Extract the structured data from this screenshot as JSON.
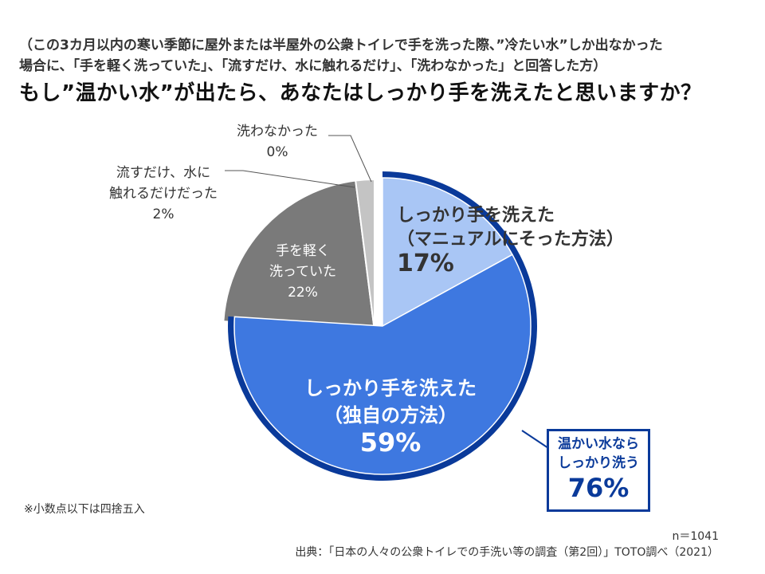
{
  "header": {
    "subtitle_line1": "（この3カ月以内の寒い季節に屋外または半屋外の公衆トイレで手を洗った際、”冷たい水”しか出なかった",
    "subtitle_line2": "場合に、「手を軽く洗っていた」、「流すだけ、水に触れるだけ」、「洗わなかった」と回答した方）",
    "title": "もし”温かい水”が出たら、あなたはしっかり手を洗えたと思いますか？"
  },
  "chart_data": {
    "type": "pie",
    "slices": [
      {
        "label_lines": [
          "しっかり手を洗えた",
          "（マニュアルにそった方法）"
        ],
        "value": 17,
        "value_label": "17%",
        "color": "#a9c6f5"
      },
      {
        "label_lines": [
          "しっかり手を洗えた",
          "（独自の方法）"
        ],
        "value": 59,
        "value_label": "59%",
        "color": "#3e78e0"
      },
      {
        "label_lines": [
          "手を軽く",
          "洗っていた"
        ],
        "value": 22,
        "value_label": "22%",
        "color": "#7a7a7a"
      },
      {
        "label_lines": [
          "流すだけ、水に",
          "触れるだけだった"
        ],
        "value": 2,
        "value_label": "2%",
        "color": "#c4c4c4"
      },
      {
        "label_lines": [
          "洗わなかった"
        ],
        "value": 0,
        "value_label": "0%",
        "color": "#e0e0e0"
      }
    ],
    "highlight": {
      "label_lines": [
        "温かい水なら",
        "しっかり洗う"
      ],
      "value": 76,
      "value_label": "76%",
      "color": "#0a3a9a"
    }
  },
  "footer": {
    "note": "※小数点以下は四捨五入",
    "n": "n＝1041",
    "source": "出典：「日本の人々の公衆トイレでの手洗い等の調査（第2回）」TOTO調べ（2021）"
  }
}
